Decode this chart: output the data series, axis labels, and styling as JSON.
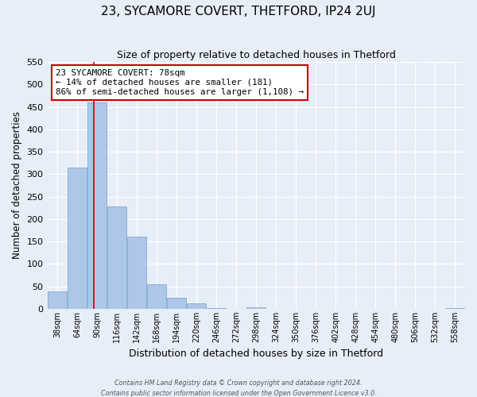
{
  "title": "23, SYCAMORE COVERT, THETFORD, IP24 2UJ",
  "subtitle": "Size of property relative to detached houses in Thetford",
  "xlabel": "Distribution of detached houses by size in Thetford",
  "ylabel": "Number of detached properties",
  "tick_labels": [
    "38sqm",
    "64sqm",
    "90sqm",
    "116sqm",
    "142sqm",
    "168sqm",
    "194sqm",
    "220sqm",
    "246sqm",
    "272sqm",
    "298sqm",
    "324sqm",
    "350sqm",
    "376sqm",
    "402sqm",
    "428sqm",
    "454sqm",
    "480sqm",
    "506sqm",
    "532sqm",
    "558sqm"
  ],
  "bar_heights": [
    38,
    315,
    460,
    228,
    160,
    55,
    25,
    12,
    2,
    0,
    3,
    0,
    0,
    0,
    0,
    0,
    0,
    0,
    0,
    0,
    2
  ],
  "bar_color": "#aec6e8",
  "bar_edge_color": "#7bafd4",
  "property_bin_index": 1,
  "annotation_line1": "23 SYCAMORE COVERT: 78sqm",
  "annotation_line2": "← 14% of detached houses are smaller (181)",
  "annotation_line3": "86% of semi-detached houses are larger (1,108) →",
  "annotation_box_color": "#ffffff",
  "annotation_box_edge": "#cc0000",
  "property_line_color": "#cc0000",
  "ylim": [
    0,
    550
  ],
  "yticks": [
    0,
    50,
    100,
    150,
    200,
    250,
    300,
    350,
    400,
    450,
    500,
    550
  ],
  "background_color": "#e8eef8",
  "grid_color": "#ffffff",
  "footer_line1": "Contains HM Land Registry data © Crown copyright and database right 2024.",
  "footer_line2": "Contains public sector information licensed under the Open Government Licence v3.0."
}
